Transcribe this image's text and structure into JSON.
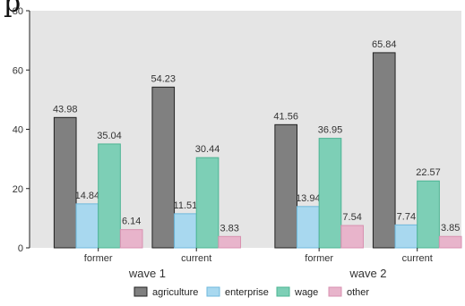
{
  "page": {
    "title_fragment": "p"
  },
  "chart_data": {
    "type": "bar",
    "title": "",
    "xlabel": "",
    "ylabel": "",
    "ylim": [
      0,
      80
    ],
    "yticks": [
      0,
      20,
      40,
      60,
      80
    ],
    "grid": false,
    "legend_position": "bottom",
    "colors": {
      "panel": "#e5e5e5",
      "agriculture": "#808080",
      "enterprise": "#a8d8ef",
      "wage": "#7dcfb6",
      "other": "#e8b4cb"
    },
    "groups": [
      {
        "name": "wave 1",
        "categories": [
          {
            "name": "former",
            "values": [
              43.98,
              14.84,
              35.04,
              6.14
            ],
            "labels": [
              "43.98",
              "14.84",
              "35.04",
              "6.14"
            ]
          },
          {
            "name": "current",
            "values": [
              54.23,
              11.51,
              30.44,
              3.83
            ],
            "labels": [
              "54.23",
              "11.51",
              "30.44",
              "3.83"
            ]
          }
        ]
      },
      {
        "name": "wave 2",
        "categories": [
          {
            "name": "former",
            "values": [
              41.56,
              13.94,
              36.95,
              7.54
            ],
            "labels": [
              "41.56",
              "13.94",
              "36.95",
              "7.54"
            ]
          },
          {
            "name": "current",
            "values": [
              65.84,
              7.74,
              22.57,
              3.85
            ],
            "labels": [
              "65.84",
              "7.74",
              "22.57",
              "3.85"
            ]
          }
        ]
      }
    ],
    "series": [
      {
        "name": "agriculture",
        "color": "#808080"
      },
      {
        "name": "enterprise",
        "color": "#a8d8ef"
      },
      {
        "name": "wage",
        "color": "#7dcfb6"
      },
      {
        "name": "other",
        "color": "#e8b4cb"
      }
    ]
  }
}
